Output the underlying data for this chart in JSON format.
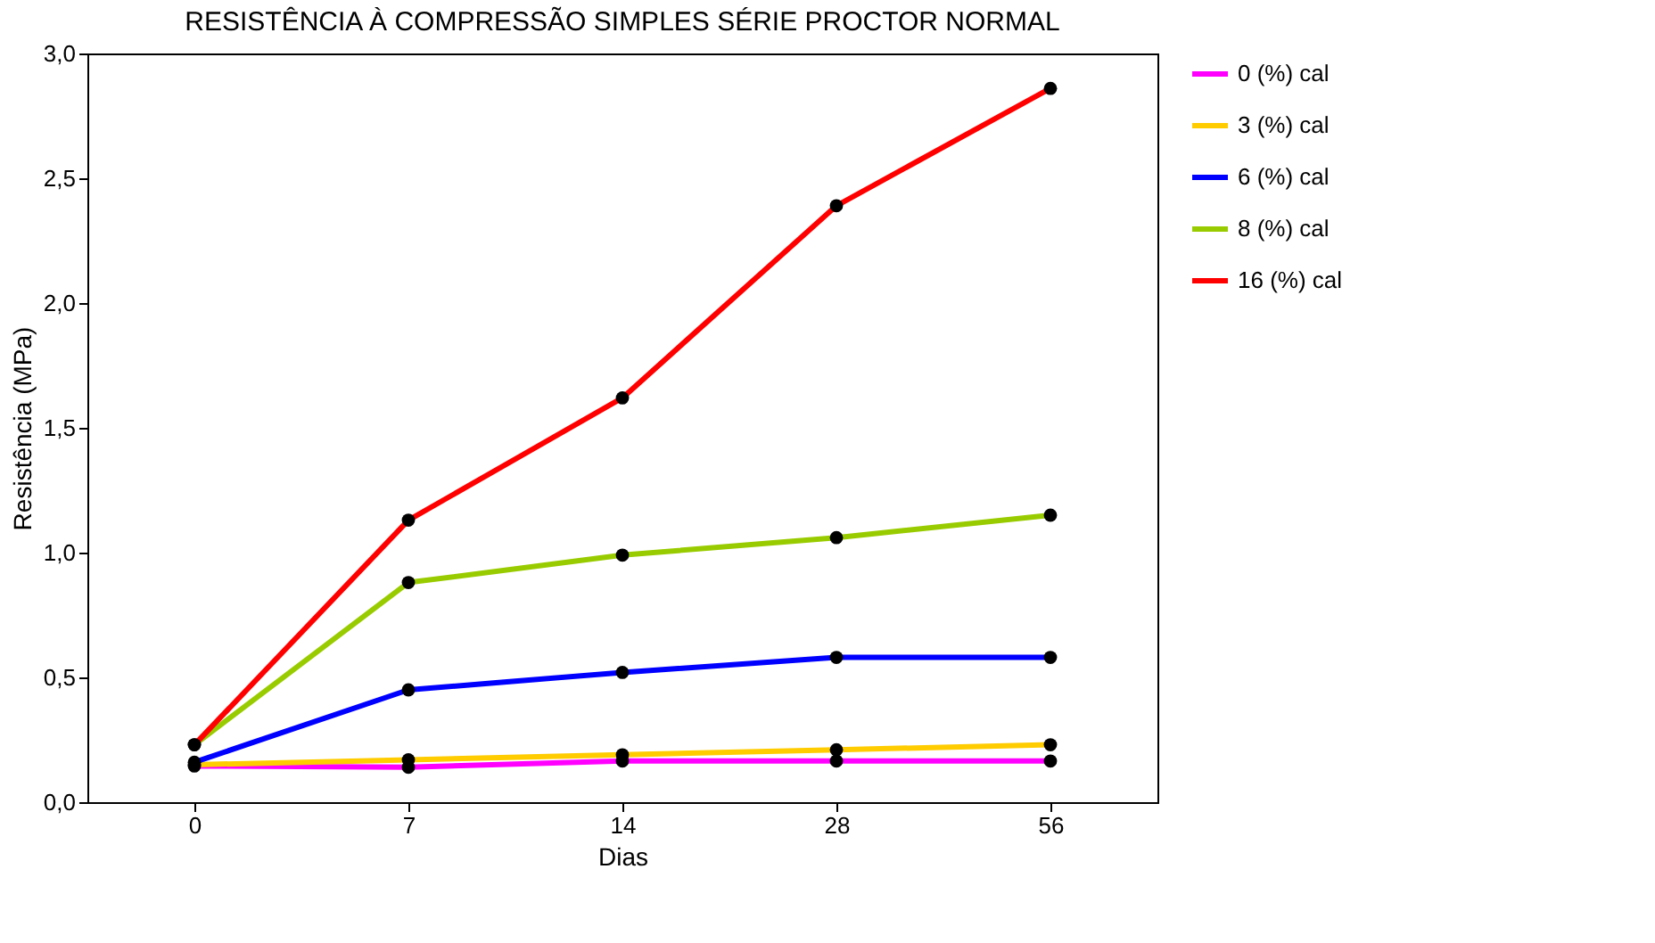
{
  "chart_data": {
    "type": "line",
    "title": "RESISTÊNCIA À COMPRESSÃO SIMPLES SÉRIE PROCTOR NORMAL",
    "xlabel": "Dias",
    "ylabel": "Resistência (MPa)",
    "categories": [
      "0",
      "7",
      "14",
      "28",
      "56"
    ],
    "series": [
      {
        "name": "0 (%) cal",
        "color": "#ff00ff",
        "values": [
          0.145,
          0.14,
          0.165,
          0.165,
          0.165
        ]
      },
      {
        "name": "3 (%) cal",
        "color": "#ffcc00",
        "values": [
          0.15,
          0.17,
          0.19,
          0.21,
          0.23
        ]
      },
      {
        "name": "6 (%) cal",
        "color": "#0000ff",
        "values": [
          0.16,
          0.45,
          0.52,
          0.58,
          0.58
        ]
      },
      {
        "name": "8 (%) cal",
        "color": "#99cc00",
        "values": [
          0.23,
          0.88,
          0.99,
          1.06,
          1.15
        ]
      },
      {
        "name": "16 (%) cal",
        "color": "#ff0000",
        "values": [
          0.23,
          1.13,
          1.62,
          2.39,
          2.86
        ]
      }
    ],
    "ylim": [
      0,
      3.0
    ],
    "yticks": [
      {
        "value": 0,
        "label": "0,0"
      },
      {
        "value": 0.5,
        "label": "0,5"
      },
      {
        "value": 1.0,
        "label": "1,0"
      },
      {
        "value": 1.5,
        "label": "1,5"
      },
      {
        "value": 2.0,
        "label": "2,0"
      },
      {
        "value": 2.5,
        "label": "2,5"
      },
      {
        "value": 3.0,
        "label": "3,0"
      }
    ],
    "grid": false,
    "legend": "right",
    "marker": "circle",
    "line_style": "solid"
  }
}
